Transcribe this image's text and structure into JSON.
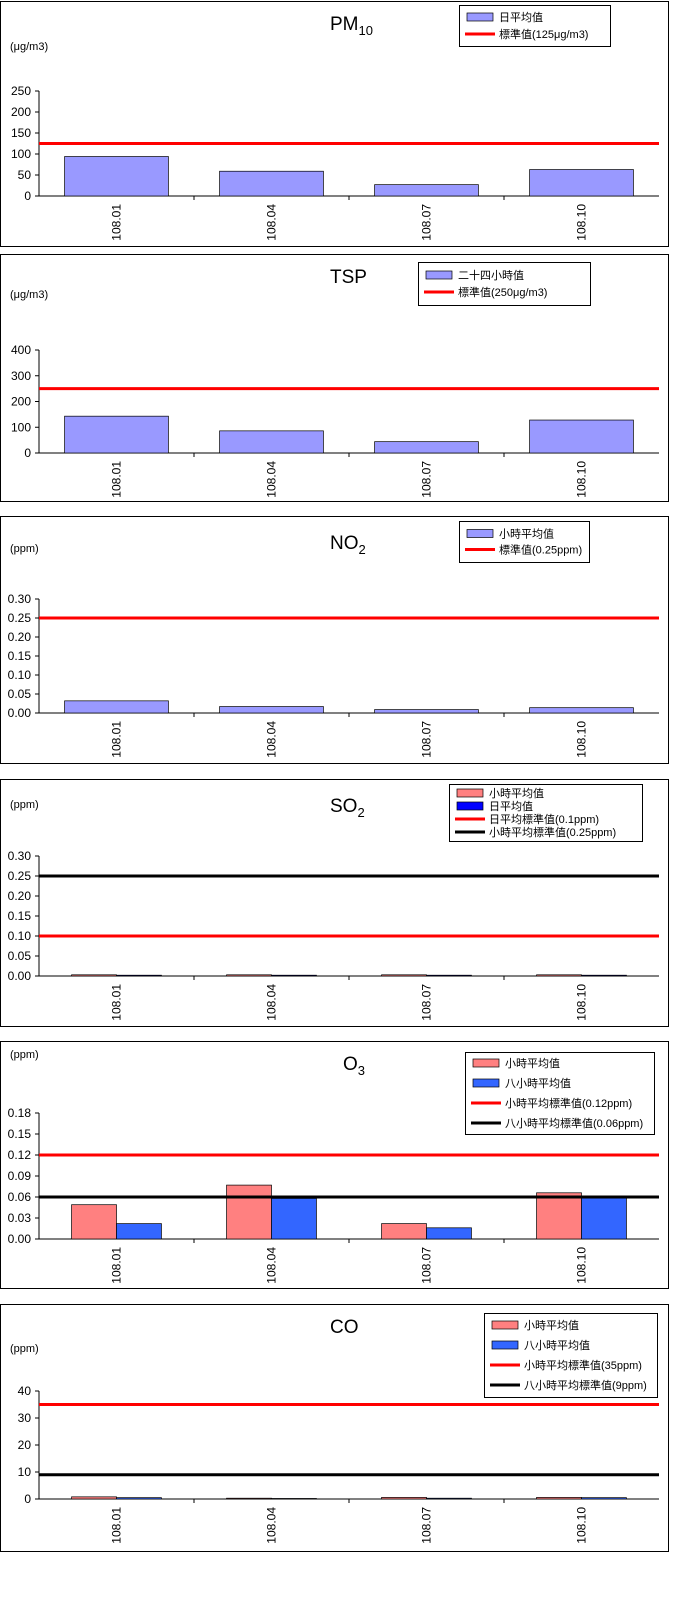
{
  "chart_data": [
    {
      "type": "bar",
      "title": "PM",
      "title_sub": "10",
      "ylabel": "(μg/m3)",
      "categories": [
        "108.01",
        "108.04",
        "108.07",
        "108.10"
      ],
      "ylim": [
        0,
        250
      ],
      "yticks": [
        "250",
        "200",
        "150",
        "100",
        "50",
        "0"
      ],
      "series": [
        {
          "name": "日平均值",
          "values": [
            94,
            59,
            27,
            63
          ],
          "color": "#9999ff"
        }
      ],
      "lines": [
        {
          "name": "標準值(125μg/m3)",
          "value": 125,
          "color": "#ff0000"
        }
      ],
      "grid": false,
      "legend_position": "top-right"
    },
    {
      "type": "bar",
      "title": "TSP",
      "title_sub": "",
      "ylabel": "(μg/m3)",
      "categories": [
        "108.01",
        "108.04",
        "108.07",
        "108.10"
      ],
      "ylim": [
        0,
        400
      ],
      "yticks": [
        "400",
        "300",
        "200",
        "100",
        "0"
      ],
      "series": [
        {
          "name": "二十四小時值",
          "values": [
            143,
            86,
            44,
            128
          ],
          "color": "#9999ff"
        }
      ],
      "lines": [
        {
          "name": "標準值(250μg/m3)",
          "value": 250,
          "color": "#ff0000"
        }
      ],
      "grid": false,
      "legend_position": "top-right"
    },
    {
      "type": "bar",
      "title": "NO",
      "title_sub": "2",
      "ylabel": "(ppm)",
      "categories": [
        "108.01",
        "108.04",
        "108.07",
        "108.10"
      ],
      "ylim": [
        0,
        0.3
      ],
      "yticks": [
        "0.30",
        "0.25",
        "0.20",
        "0.15",
        "0.10",
        "0.05",
        "0.00"
      ],
      "series": [
        {
          "name": "小時平均值",
          "values": [
            0.032,
            0.017,
            0.009,
            0.014
          ],
          "color": "#9999ff"
        }
      ],
      "lines": [
        {
          "name": "標準值(0.25ppm)",
          "value": 0.25,
          "color": "#ff0000"
        }
      ],
      "grid": false,
      "legend_position": "top-right"
    },
    {
      "type": "bar",
      "title": "SO",
      "title_sub": "2",
      "ylabel": "(ppm)",
      "categories": [
        "108.01",
        "108.04",
        "108.07",
        "108.10"
      ],
      "ylim": [
        0,
        0.3
      ],
      "yticks": [
        "0.30",
        "0.25",
        "0.20",
        "0.15",
        "0.10",
        "0.05",
        "0.00"
      ],
      "series": [
        {
          "name": "小時平均值",
          "values": [
            0.003,
            0.003,
            0.003,
            0.003
          ],
          "color": "#ff8080"
        },
        {
          "name": "日平均值",
          "values": [
            0.002,
            0.002,
            0.002,
            0.002
          ],
          "color": "#0000ff"
        }
      ],
      "lines": [
        {
          "name": "日平均標準值(0.1ppm)",
          "value": 0.1,
          "color": "#ff0000"
        },
        {
          "name": "小時平均標準值(0.25ppm)",
          "value": 0.25,
          "color": "#000000"
        }
      ],
      "grid": false,
      "legend_position": "top-right"
    },
    {
      "type": "bar",
      "title": "O",
      "title_sub": "3",
      "ylabel": "(ppm)",
      "categories": [
        "108.01",
        "108.04",
        "108.07",
        "108.10"
      ],
      "ylim": [
        0,
        0.18
      ],
      "yticks": [
        "0.18",
        "0.15",
        "0.12",
        "0.09",
        "0.06",
        "0.03",
        "0.00"
      ],
      "series": [
        {
          "name": "小時平均值",
          "values": [
            0.049,
            0.077,
            0.022,
            0.066
          ],
          "color": "#ff8080"
        },
        {
          "name": "八小時平均值",
          "values": [
            0.022,
            0.058,
            0.016,
            0.06
          ],
          "color": "#3366ff"
        }
      ],
      "lines": [
        {
          "name": "小時平均標準值(0.12ppm)",
          "value": 0.12,
          "color": "#ff0000"
        },
        {
          "name": "八小時平均標準值(0.06ppm)",
          "value": 0.06,
          "color": "#000000"
        }
      ],
      "grid": false,
      "legend_position": "top-right"
    },
    {
      "type": "bar",
      "title": "CO",
      "title_sub": "",
      "ylabel": "(ppm)",
      "categories": [
        "108.01",
        "108.04",
        "108.07",
        "108.10"
      ],
      "ylim": [
        0,
        40
      ],
      "yticks": [
        "40",
        "30",
        "20",
        "10",
        "0"
      ],
      "series": [
        {
          "name": "小時平均值",
          "values": [
            0.8,
            0.3,
            0.6,
            0.6
          ],
          "color": "#ff8080"
        },
        {
          "name": "八小時平均值",
          "values": [
            0.5,
            0.2,
            0.3,
            0.5
          ],
          "color": "#3366ff"
        }
      ],
      "lines": [
        {
          "name": "小時平均標準值(35ppm)",
          "value": 35,
          "color": "#ff0000"
        },
        {
          "name": "八小時平均標準值(9ppm)",
          "value": 9,
          "color": "#000000"
        }
      ],
      "grid": false,
      "legend_position": "top-right"
    }
  ]
}
